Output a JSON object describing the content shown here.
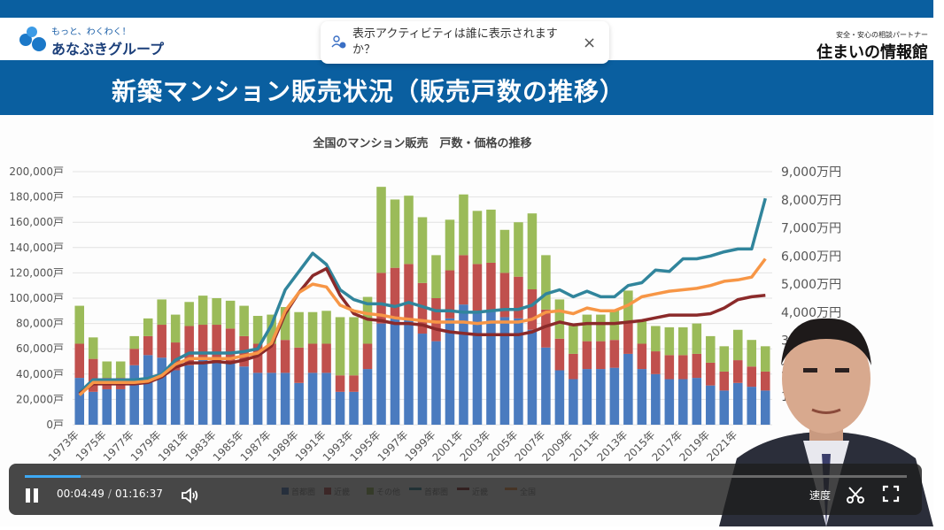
{
  "brand": {
    "tagline": "もっと、わくわく！",
    "name": "あなぶきグループ"
  },
  "partner": {
    "tagline": "安全・安心の相談パートナー",
    "name": "住まいの情報館"
  },
  "notice": {
    "text": "表示アクティビティは誰に表示されますか？",
    "close": "×"
  },
  "slide_title": "新築マンション販売状況（販売戸数の推移）",
  "player": {
    "current_time": "00:04:49",
    "separator": "/",
    "duration": "01:16:37",
    "speed_label": "速度",
    "progress": 0.063
  },
  "colors": {
    "header": "#0a5fa0",
    "bar_blue": "#4a7bbf",
    "bar_red": "#c0504d",
    "bar_green": "#9bbb59",
    "line_teal": "#31859c",
    "line_darkred": "#8b2a2a",
    "line_orange": "#f79646"
  },
  "chart_data": {
    "type": "bar",
    "title": "全国のマンション販売　戸数・価格の推移",
    "categories": [
      "1973年",
      "1974年",
      "1975年",
      "1976年",
      "1977年",
      "1978年",
      "1979年",
      "1980年",
      "1981年",
      "1982年",
      "1983年",
      "1984年",
      "1985年",
      "1986年",
      "1987年",
      "1988年",
      "1989年",
      "1990年",
      "1991年",
      "1992年",
      "1993年",
      "1994年",
      "1995年",
      "1996年",
      "1997年",
      "1998年",
      "1999年",
      "2000年",
      "2001年",
      "2002年",
      "2003年",
      "2004年",
      "2005年",
      "2006年",
      "2007年",
      "2008年",
      "2009年",
      "2010年",
      "2011年",
      "2012年",
      "2013年",
      "2014年",
      "2015年",
      "2016年",
      "2017年",
      "2018年",
      "2019年",
      "2020年",
      "2021年",
      "2022年",
      "2023年"
    ],
    "x_tick_labels": [
      "1973年",
      "1975年",
      "1977年",
      "1979年",
      "1981年",
      "1983年",
      "1985年",
      "1987年",
      "1989年",
      "1991年",
      "1993年",
      "1995年",
      "1997年",
      "1999年",
      "2001年",
      "2003年",
      "2005年",
      "2007年",
      "2009年",
      "2011年",
      "2013年",
      "2015年",
      "2017年",
      "2019年",
      "2021年"
    ],
    "y_left_ticks": [
      "0戸",
      "20,000戸",
      "40,000戸",
      "60,000戸",
      "80,000戸",
      "100,000戸",
      "120,000戸",
      "140,000戸",
      "160,000戸",
      "180,000戸",
      "200,000戸"
    ],
    "y_right_ticks": [
      "",
      "1,000万円",
      "2,000万円",
      "3,000万円",
      "4,000万円",
      "5,000万円",
      "6,000万円",
      "7,000万円",
      "8,000万円",
      "9,000万円"
    ],
    "ylim_left": [
      0,
      200000
    ],
    "ylim_right": [
      0,
      9000
    ],
    "stacked_series": [
      {
        "name": "首都圏",
        "values": [
          37000,
          26000,
          28000,
          28000,
          47000,
          55000,
          53000,
          43000,
          47000,
          53000,
          50000,
          49000,
          46000,
          41000,
          41000,
          41000,
          33000,
          41000,
          41000,
          26000,
          26000,
          44000,
          80000,
          84000,
          83000,
          72000,
          66000,
          84000,
          95000,
          90000,
          90000,
          85000,
          84000,
          75000,
          61000,
          43000,
          36000,
          44000,
          44000,
          45000,
          56000,
          44000,
          40000,
          36000,
          36000,
          37000,
          31000,
          27000,
          33000,
          30000,
          27000
        ]
      },
      {
        "name": "近畿",
        "values": [
          27000,
          26000,
          9000,
          9000,
          13000,
          15000,
          26000,
          22000,
          31000,
          26000,
          29000,
          27000,
          24000,
          23000,
          23000,
          26000,
          28000,
          23000,
          23000,
          13000,
          13000,
          20000,
          40000,
          40000,
          44000,
          40000,
          34000,
          38000,
          39000,
          37000,
          38000,
          35000,
          33000,
          32000,
          30000,
          25000,
          20000,
          22000,
          22000,
          22000,
          25000,
          20000,
          18000,
          19000,
          19000,
          19000,
          18000,
          15000,
          18000,
          16000,
          15000
        ]
      },
      {
        "name": "その他",
        "values": [
          30000,
          17000,
          13000,
          13000,
          10000,
          14000,
          20000,
          22000,
          19000,
          23000,
          21000,
          22000,
          24000,
          22000,
          23000,
          26000,
          28000,
          25000,
          26000,
          46000,
          46000,
          37000,
          68000,
          54000,
          54000,
          52000,
          34000,
          40000,
          48000,
          42000,
          42000,
          34000,
          43000,
          60000,
          43000,
          31000,
          24000,
          21000,
          21000,
          24000,
          25000,
          18000,
          20000,
          22000,
          22000,
          24000,
          21000,
          20000,
          24000,
          21000,
          20000
        ]
      }
    ],
    "line_series": [
      {
        "name": "首都圏",
        "values": [
          1150,
          1600,
          1600,
          1600,
          1600,
          1650,
          1800,
          2300,
          2550,
          2550,
          2550,
          2550,
          2600,
          2700,
          3550,
          4800,
          5450,
          6100,
          5700,
          4800,
          4450,
          4300,
          4300,
          4200,
          4350,
          4200,
          4050,
          4050,
          4000,
          4000,
          4050,
          4100,
          4100,
          4250,
          4650,
          4800,
          4550,
          4750,
          4550,
          4550,
          4950,
          5050,
          5500,
          5450,
          5900,
          5900,
          6000,
          6150,
          6250,
          6250,
          8050
        ]
      },
      {
        "name": "近畿",
        "values": [
          1100,
          1450,
          1450,
          1450,
          1450,
          1500,
          1700,
          2050,
          2200,
          2200,
          2250,
          2200,
          2300,
          2450,
          2800,
          3950,
          4700,
          5300,
          5550,
          4600,
          3950,
          3750,
          3700,
          3600,
          3600,
          3550,
          3400,
          3300,
          3250,
          3200,
          3200,
          3200,
          3200,
          3300,
          3500,
          3650,
          3550,
          3600,
          3600,
          3600,
          3650,
          3700,
          3800,
          3900,
          3900,
          3900,
          3950,
          4150,
          4450,
          4550,
          4600
        ]
      },
      {
        "name": "全国",
        "values": [
          1050,
          1500,
          1500,
          1500,
          1500,
          1550,
          1750,
          2150,
          2350,
          2350,
          2350,
          2350,
          2450,
          2550,
          2900,
          4050,
          4700,
          5000,
          4900,
          4250,
          4050,
          3950,
          3900,
          3800,
          3750,
          3700,
          3650,
          3650,
          3650,
          3600,
          3650,
          3650,
          3650,
          3750,
          4000,
          4050,
          3950,
          4150,
          4050,
          4050,
          4250,
          4550,
          4650,
          4750,
          4800,
          4850,
          4950,
          5100,
          5150,
          5250,
          5900
        ]
      }
    ],
    "legend": [
      "首都圏",
      "近畿",
      "その他",
      "首都圏",
      "近畿",
      "全国"
    ],
    "legend_position": "bottom",
    "grid": true
  }
}
